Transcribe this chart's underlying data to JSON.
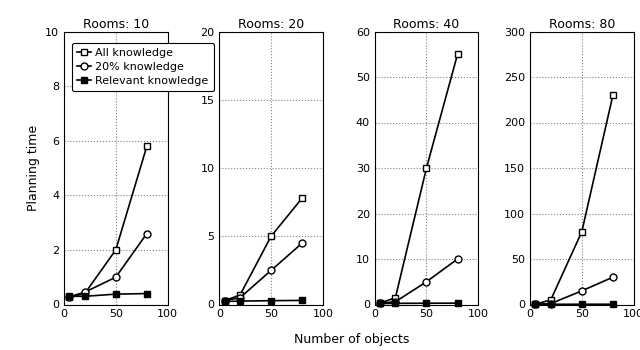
{
  "rooms": [
    10,
    20,
    40,
    80
  ],
  "x_values": [
    5,
    20,
    50,
    80
  ],
  "series": {
    "all_knowledge": {
      "label": "All knowledge",
      "marker": "s",
      "fillstyle": "none",
      "data": {
        "10": [
          0.28,
          0.4,
          2.0,
          5.8
        ],
        "20": [
          0.28,
          0.7,
          5.0,
          7.8
        ],
        "40": [
          0.3,
          1.5,
          30.0,
          55.0
        ],
        "80": [
          0.4,
          5.0,
          80.0,
          230.0
        ]
      }
    },
    "20pct_knowledge": {
      "label": "20% knowledge",
      "marker": "o",
      "fillstyle": "none",
      "data": {
        "10": [
          0.28,
          0.45,
          1.0,
          2.6
        ],
        "20": [
          0.28,
          0.5,
          2.5,
          4.5
        ],
        "40": [
          0.28,
          0.6,
          5.0,
          10.0
        ],
        "80": [
          0.35,
          1.0,
          15.0,
          30.0
        ]
      }
    },
    "relevant_knowledge": {
      "label": "Relevant knowledge",
      "marker": "s",
      "fillstyle": "full",
      "data": {
        "10": [
          0.3,
          0.3,
          0.38,
          0.4
        ],
        "20": [
          0.22,
          0.25,
          0.28,
          0.3
        ],
        "40": [
          0.22,
          0.25,
          0.28,
          0.3
        ],
        "80": [
          0.22,
          0.25,
          0.28,
          0.3
        ]
      }
    }
  },
  "ylims": {
    "10": [
      0,
      10
    ],
    "20": [
      0,
      20
    ],
    "40": [
      0,
      60
    ],
    "80": [
      0,
      300
    ]
  },
  "yticks": {
    "10": [
      0,
      2,
      4,
      6,
      8,
      10
    ],
    "20": [
      0,
      5,
      10,
      15,
      20
    ],
    "40": [
      0,
      10,
      20,
      30,
      40,
      50,
      60
    ],
    "80": [
      0,
      50,
      100,
      150,
      200,
      250,
      300
    ]
  },
  "xlim": [
    0,
    100
  ],
  "xticks": [
    0,
    50,
    100
  ],
  "xlabel": "Number of objects",
  "ylabel": "Planning time",
  "background_color": "#ffffff"
}
